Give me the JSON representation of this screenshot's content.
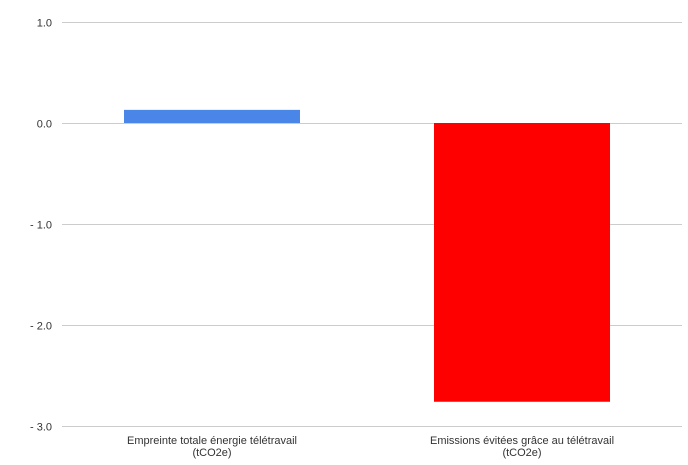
{
  "chart_data": {
    "type": "bar",
    "categories": [
      [
        "Empreinte totale énergie télétravail",
        "(tCO2e)"
      ],
      [
        "Emissions évitées grâce au télétravail",
        "(tCO2e)"
      ]
    ],
    "values": [
      0.13,
      -2.76
    ],
    "bar_colors": [
      "#4a86e8",
      "#ff0000"
    ],
    "yticks": [
      1.0,
      0.0,
      -1.0,
      -2.0,
      -3.0
    ],
    "ytick_labels": [
      "1.0",
      "0.0",
      "- 1.0",
      "- 2.0",
      "- 3.0"
    ],
    "ylim": [
      -3.0,
      1.0
    ],
    "grid": true,
    "legend": "none"
  }
}
